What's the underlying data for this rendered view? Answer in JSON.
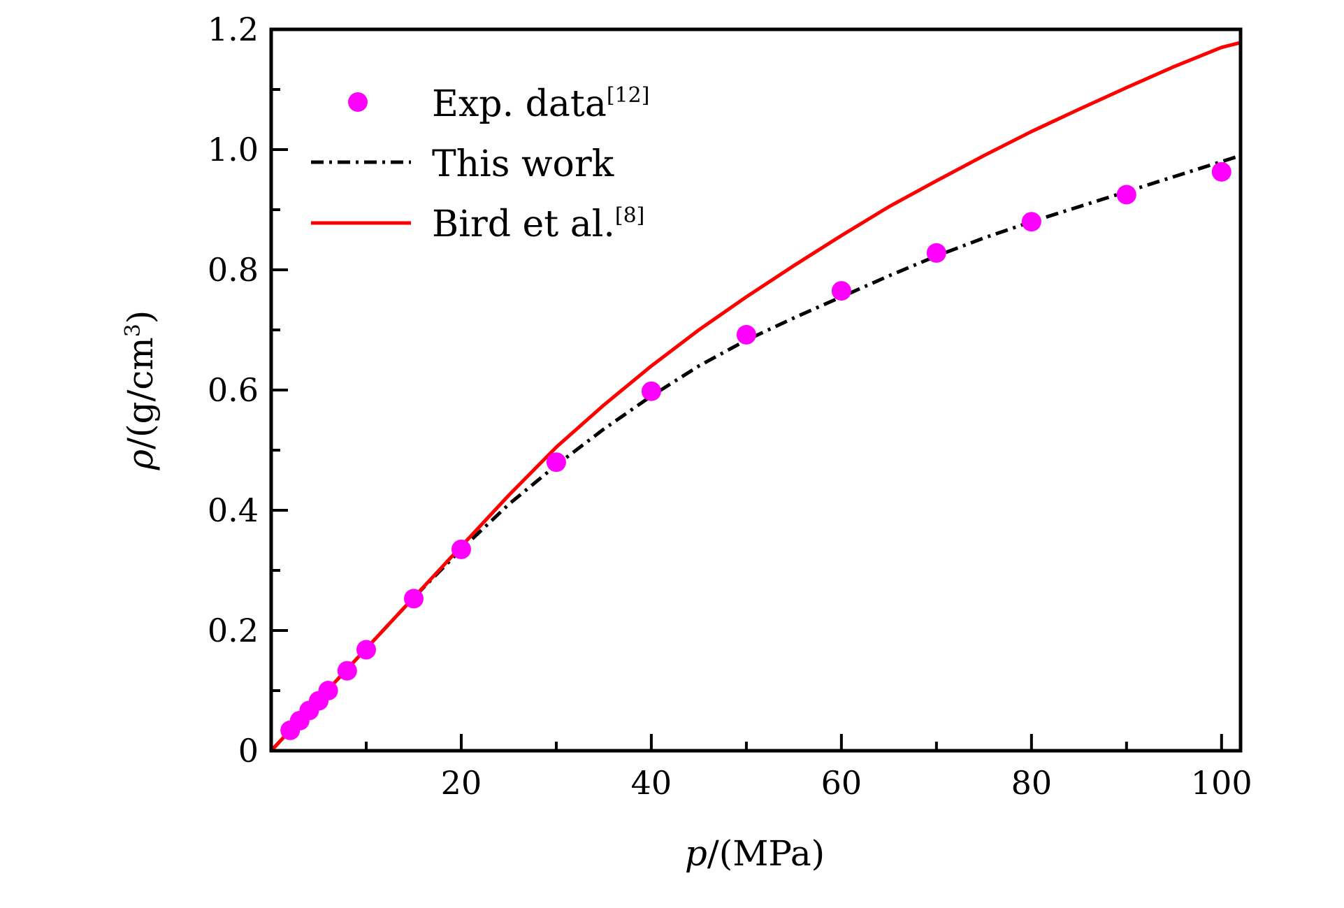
{
  "chart_data": {
    "type": "line",
    "x_axis": {
      "label_var": "p",
      "label_unit": "/(MPa)",
      "range": [
        0,
        102
      ],
      "major_ticks": [
        20,
        40,
        60,
        80,
        100
      ],
      "minor_ticks": [
        10,
        30,
        50,
        70,
        90
      ]
    },
    "y_axis": {
      "label_var": "ρ",
      "label_unit": "/(g/cm",
      "label_sup": "3",
      "label_close": ")",
      "range": [
        0,
        1.2
      ],
      "major_ticks": [
        0,
        0.2,
        0.4,
        0.6,
        0.8,
        1.0,
        1.2
      ],
      "major_tick_labels": [
        "0",
        "0.2",
        "0.4",
        "0.6",
        "0.8",
        "1.0",
        "1.2"
      ],
      "minor_ticks": [
        0.1,
        0.3,
        0.5,
        0.7,
        0.9,
        1.1
      ]
    },
    "legend": {
      "position": "top-left",
      "entries": [
        {
          "key": "exp",
          "text": "Exp. data",
          "sup": "[12]"
        },
        {
          "key": "this",
          "text": "This work",
          "sup": ""
        },
        {
          "key": "bird",
          "text": "Bird et al.",
          "sup": "[8]"
        }
      ]
    },
    "series": [
      {
        "key": "exp",
        "style": "marker",
        "color": "#ff00ff",
        "x": [
          2,
          3,
          4,
          5,
          6,
          8,
          10,
          15,
          20,
          30,
          40,
          50,
          60,
          70,
          80,
          90,
          100
        ],
        "y": [
          0.034,
          0.05,
          0.067,
          0.083,
          0.1,
          0.133,
          0.168,
          0.253,
          0.335,
          0.48,
          0.598,
          0.692,
          0.765,
          0.828,
          0.88,
          0.925,
          0.963
        ]
      },
      {
        "key": "this",
        "style": "dashdot",
        "color": "#000000",
        "x": [
          0,
          5,
          10,
          15,
          20,
          25,
          30,
          35,
          40,
          45,
          50,
          55,
          60,
          65,
          70,
          75,
          80,
          85,
          90,
          95,
          100,
          102
        ],
        "y": [
          0,
          0.085,
          0.17,
          0.255,
          0.335,
          0.41,
          0.475,
          0.535,
          0.59,
          0.64,
          0.683,
          0.72,
          0.755,
          0.79,
          0.823,
          0.853,
          0.88,
          0.905,
          0.93,
          0.955,
          0.98,
          0.99
        ]
      },
      {
        "key": "bird",
        "style": "solid",
        "color": "#ff0000",
        "x": [
          0,
          5,
          10,
          15,
          20,
          25,
          30,
          35,
          40,
          45,
          50,
          55,
          60,
          65,
          70,
          75,
          80,
          85,
          90,
          95,
          100,
          102
        ],
        "y": [
          0,
          0.085,
          0.17,
          0.255,
          0.34,
          0.425,
          0.505,
          0.575,
          0.64,
          0.7,
          0.755,
          0.807,
          0.857,
          0.905,
          0.948,
          0.99,
          1.03,
          1.067,
          1.103,
          1.138,
          1.17,
          1.178
        ]
      }
    ],
    "grid": false
  }
}
